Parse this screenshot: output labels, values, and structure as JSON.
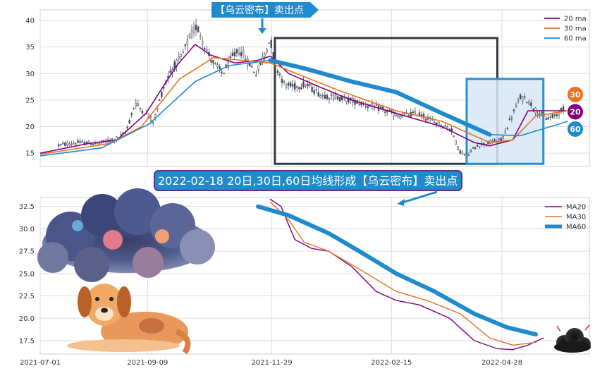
{
  "colors": {
    "ma20": "#800080",
    "ma30": "#e67322",
    "ma60": "#1f8acc",
    "candle": "#444a5a",
    "box": "#333a44",
    "box2": "#2a8fd0",
    "box2_fill": "#d6e8f6",
    "grid": "#dddddd",
    "axis_bg": "#ffffff",
    "banner_fill": "#1f8acc",
    "banner_border": "#6a2a8a"
  },
  "callout_top": {
    "text": "【乌云密布】卖出点"
  },
  "banner_mid": {
    "text": "2022-02-18 20日,30日,60日均线形成【乌云密布】卖出点"
  },
  "badges": [
    {
      "label": "30",
      "color": "#e67322"
    },
    {
      "label": "20",
      "color": "#800080"
    },
    {
      "label": "60",
      "color": "#1f8acc"
    }
  ],
  "chart_data": [
    {
      "type": "candlestick+line",
      "title": "",
      "ylim": [
        12.5,
        42
      ],
      "yticks": [
        15,
        20,
        25,
        30,
        35,
        40
      ],
      "x_range": [
        "2021-07-01",
        "2022-06-15"
      ],
      "grid": true,
      "legend": {
        "placement": "top-right",
        "entries": [
          {
            "label": "20 ma",
            "color": "#800080"
          },
          {
            "label": "30 ma",
            "color": "#e67322"
          },
          {
            "label": "60 ma",
            "color": "#1f8acc"
          }
        ]
      },
      "candle_path": [
        [
          "2021-07-13",
          16.5
        ],
        [
          "2021-07-25",
          17.0
        ],
        [
          "2021-08-08",
          16.8
        ],
        [
          "2021-08-20",
          17.8
        ],
        [
          "2021-08-26",
          19.0
        ],
        [
          "2021-09-01",
          24.5
        ],
        [
          "2021-09-06",
          23.0
        ],
        [
          "2021-09-13",
          21.0
        ],
        [
          "2021-09-19",
          27.0
        ],
        [
          "2021-09-24",
          30.5
        ],
        [
          "2021-10-01",
          33.0
        ],
        [
          "2021-10-06",
          36.5
        ],
        [
          "2021-10-11",
          39.0
        ],
        [
          "2021-10-14",
          37.0
        ],
        [
          "2021-10-18",
          34.0
        ],
        [
          "2021-10-23",
          31.5
        ],
        [
          "2021-10-28",
          30.0
        ],
        [
          "2021-11-03",
          33.0
        ],
        [
          "2021-11-08",
          34.5
        ],
        [
          "2021-11-14",
          32.0
        ],
        [
          "2021-11-19",
          30.0
        ],
        [
          "2021-11-24",
          33.5
        ],
        [
          "2021-11-28",
          36.5
        ],
        [
          "2021-12-01",
          32.0
        ],
        [
          "2021-12-07",
          28.0
        ],
        [
          "2021-12-13",
          27.5
        ],
        [
          "2021-12-21",
          28.0
        ],
        [
          "2021-12-31",
          26.0
        ],
        [
          "2022-01-12",
          25.5
        ],
        [
          "2022-01-25",
          24.5
        ],
        [
          "2022-02-06",
          23.5
        ],
        [
          "2022-02-20",
          22.0
        ],
        [
          "2022-03-04",
          22.5
        ],
        [
          "2022-03-14",
          21.0
        ],
        [
          "2022-03-26",
          19.5
        ],
        [
          "2022-03-31",
          15.5
        ],
        [
          "2022-04-05",
          14.5
        ],
        [
          "2022-04-12",
          16.5
        ],
        [
          "2022-04-20",
          17.0
        ],
        [
          "2022-04-28",
          17.5
        ],
        [
          "2022-05-03",
          21.0
        ],
        [
          "2022-05-10",
          25.5
        ],
        [
          "2022-05-15",
          25.0
        ],
        [
          "2022-05-20",
          23.0
        ],
        [
          "2022-05-27",
          21.5
        ],
        [
          "2022-06-01",
          22.0
        ],
        [
          "2022-06-08",
          23.5
        ]
      ],
      "series": [
        {
          "name": "20 ma",
          "points": [
            [
              "2021-07-01",
              15.0
            ],
            [
              "2021-08-01",
              16.8
            ],
            [
              "2021-08-20",
              17.5
            ],
            [
              "2021-09-08",
              22.5
            ],
            [
              "2021-09-28",
              31.5
            ],
            [
              "2021-10-10",
              35.5
            ],
            [
              "2021-10-20",
              33.5
            ],
            [
              "2021-11-05",
              32.0
            ],
            [
              "2021-11-20",
              32.5
            ],
            [
              "2021-11-28",
              33.3
            ],
            [
              "2021-12-10",
              30.0
            ],
            [
              "2021-12-30",
              27.5
            ],
            [
              "2022-01-20",
              25.0
            ],
            [
              "2022-02-18",
              22.5
            ],
            [
              "2022-03-20",
              20.0
            ],
            [
              "2022-04-10",
              17.0
            ],
            [
              "2022-04-20",
              16.4
            ],
            [
              "2022-05-05",
              17.5
            ],
            [
              "2022-05-15",
              23.0
            ],
            [
              "2022-05-28",
              23.0
            ],
            [
              "2022-06-10",
              23.0
            ]
          ]
        },
        {
          "name": "30 ma",
          "points": [
            [
              "2021-07-01",
              14.8
            ],
            [
              "2021-08-15",
              16.8
            ],
            [
              "2021-09-05",
              20.0
            ],
            [
              "2021-09-30",
              29.0
            ],
            [
              "2021-10-22",
              33.0
            ],
            [
              "2021-11-10",
              32.5
            ],
            [
              "2021-11-28",
              32.0
            ],
            [
              "2021-12-15",
              30.0
            ],
            [
              "2022-01-10",
              27.0
            ],
            [
              "2022-02-18",
              23.0
            ],
            [
              "2022-03-20",
              21.0
            ],
            [
              "2022-04-20",
              17.0
            ],
            [
              "2022-05-05",
              17.5
            ],
            [
              "2022-05-20",
              22.0
            ],
            [
              "2022-06-10",
              23.0
            ]
          ]
        },
        {
          "name": "60 ma",
          "points": [
            [
              "2021-07-01",
              14.5
            ],
            [
              "2021-08-10",
              16.0
            ],
            [
              "2021-09-10",
              20.5
            ],
            [
              "2021-10-10",
              28.5
            ],
            [
              "2021-11-01",
              31.5
            ],
            [
              "2021-11-28",
              32.5
            ],
            [
              "2021-12-20",
              31.0
            ],
            [
              "2022-01-20",
              28.5
            ],
            [
              "2022-02-18",
              26.5
            ],
            [
              "2022-03-20",
              22.5
            ],
            [
              "2022-04-20",
              18.5
            ],
            [
              "2022-05-10",
              18.3
            ],
            [
              "2022-06-10",
              21.0
            ]
          ]
        }
      ],
      "highlight_boxes": [
        {
          "x": [
            "2021-12-01",
            "2022-04-25"
          ],
          "y": [
            13,
            36.7
          ]
        },
        {
          "x": [
            "2022-04-05",
            "2022-05-25"
          ],
          "y": [
            13,
            29
          ]
        }
      ]
    },
    {
      "type": "line",
      "title": "",
      "ylim": [
        16,
        33.5
      ],
      "yticks": [
        17.5,
        20.0,
        22.5,
        25.0,
        27.5,
        30.0,
        32.5
      ],
      "x_range": [
        "2021-07-01",
        "2022-06-15"
      ],
      "xticks": [
        "2021-07-01",
        "2021-09-09",
        "2021-11-29",
        "2022-02-15",
        "2022-04-28"
      ],
      "grid": true,
      "legend": {
        "placement": "top-right",
        "entries": [
          {
            "label": "MA20",
            "color": "#800080"
          },
          {
            "label": "MA30",
            "color": "#e67322"
          },
          {
            "label": "MA60",
            "color": "#1f8acc"
          }
        ]
      },
      "series": [
        {
          "name": "MA20",
          "points": [
            [
              "2021-11-28",
              33.3
            ],
            [
              "2021-12-05",
              32.5
            ],
            [
              "2021-12-14",
              28.8
            ],
            [
              "2021-12-25",
              27.8
            ],
            [
              "2022-01-05",
              27.5
            ],
            [
              "2022-01-20",
              25.8
            ],
            [
              "2022-02-05",
              23.0
            ],
            [
              "2022-02-18",
              22.0
            ],
            [
              "2022-03-05",
              21.5
            ],
            [
              "2022-03-25",
              20.0
            ],
            [
              "2022-04-10",
              17.5
            ],
            [
              "2022-04-25",
              16.6
            ],
            [
              "2022-05-05",
              16.5
            ],
            [
              "2022-05-15",
              17.0
            ],
            [
              "2022-05-25",
              17.8
            ]
          ]
        },
        {
          "name": "MA30",
          "points": [
            [
              "2021-11-28",
              33.0
            ],
            [
              "2021-12-10",
              31.0
            ],
            [
              "2021-12-20",
              28.5
            ],
            [
              "2022-01-05",
              27.5
            ],
            [
              "2022-01-25",
              25.5
            ],
            [
              "2022-02-18",
              23.0
            ],
            [
              "2022-03-10",
              22.0
            ],
            [
              "2022-04-01",
              20.5
            ],
            [
              "2022-04-20",
              17.8
            ],
            [
              "2022-05-05",
              17.0
            ],
            [
              "2022-05-20",
              17.3
            ]
          ]
        },
        {
          "name": "MA60",
          "points": [
            [
              "2021-11-20",
              32.5
            ],
            [
              "2021-12-10",
              31.5
            ],
            [
              "2022-01-05",
              29.5
            ],
            [
              "2022-01-25",
              27.5
            ],
            [
              "2022-02-18",
              25.0
            ],
            [
              "2022-03-15",
              23.0
            ],
            [
              "2022-04-10",
              20.5
            ],
            [
              "2022-05-01",
              19.0
            ],
            [
              "2022-05-20",
              18.2
            ]
          ]
        }
      ]
    }
  ]
}
